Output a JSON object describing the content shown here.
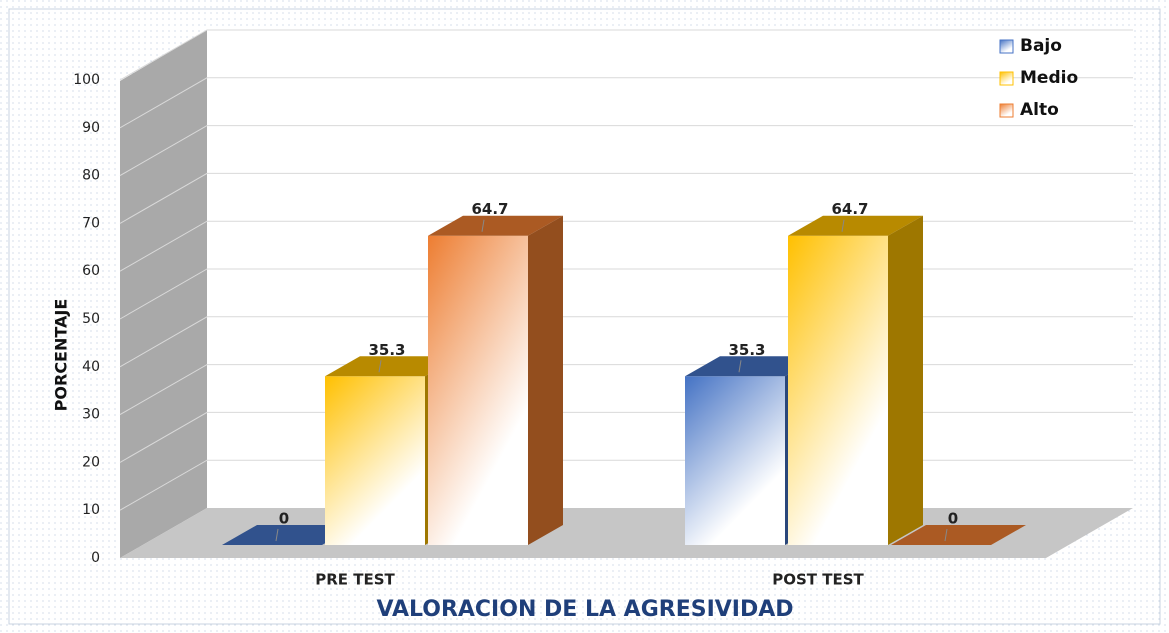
{
  "chart_data": {
    "type": "bar3d",
    "categories": [
      "PRE TEST",
      "POST TEST"
    ],
    "series": [
      {
        "name": "Bajo",
        "color": "#4472c4",
        "values": [
          0,
          35.3
        ]
      },
      {
        "name": "Medio",
        "color": "#ffc000",
        "values": [
          35.3,
          64.7
        ]
      },
      {
        "name": "Alto",
        "color": "#ed7d31",
        "values": [
          64.7,
          0
        ]
      }
    ],
    "ylim": [
      0,
      100
    ],
    "yticks": [
      0,
      10,
      20,
      30,
      40,
      50,
      60,
      70,
      80,
      90,
      100
    ],
    "y_label": "PORCENTAJE",
    "x_label": "VALORACION DE LA AGRESIVIDAD",
    "grid": true,
    "legend": "top-right"
  }
}
